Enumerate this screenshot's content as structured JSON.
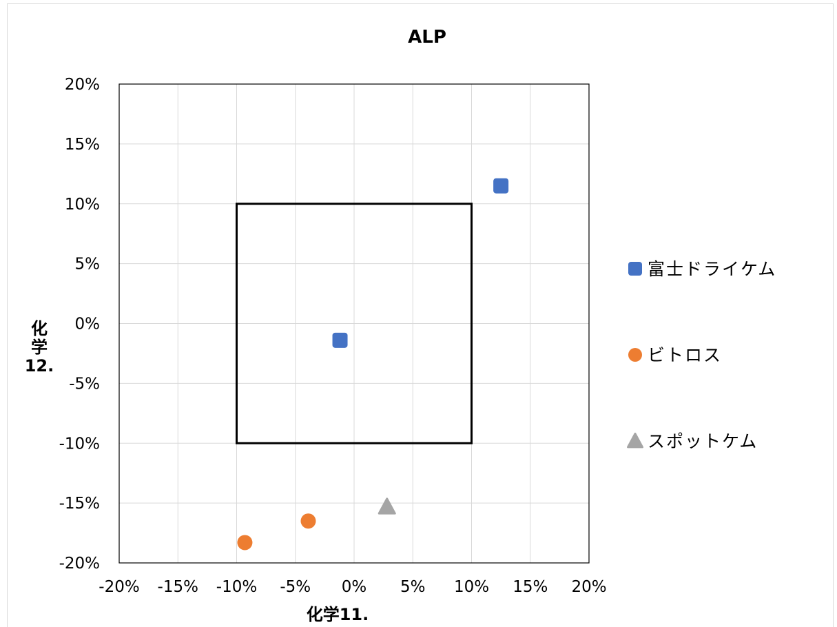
{
  "chart_data": {
    "type": "scatter",
    "title": "ALP",
    "xlabel": "化学11.",
    "ylabel": "化学12.",
    "xlim": [
      -0.2,
      0.2
    ],
    "ylim": [
      -0.2,
      0.2
    ],
    "x_ticks": [
      "-20%",
      "-15%",
      "-10%",
      "-5%",
      "0%",
      "5%",
      "10%",
      "15%",
      "20%"
    ],
    "y_ticks": [
      "20%",
      "15%",
      "10%",
      "5%",
      "0%",
      "-5%",
      "-10%",
      "-15%",
      "-20%"
    ],
    "grid": true,
    "legend_position": "right",
    "acceptance_box": {
      "x": [
        -0.1,
        0.1
      ],
      "y": [
        -0.1,
        0.1
      ]
    },
    "series": [
      {
        "name": "富士ドライケム",
        "marker": "square",
        "color": "#4472C4",
        "points": [
          {
            "x": 0.125,
            "y": 0.115
          },
          {
            "x": -0.012,
            "y": -0.014
          }
        ]
      },
      {
        "name": "ビトロス",
        "marker": "circle",
        "color": "#ED7D31",
        "points": [
          {
            "x": -0.093,
            "y": -0.183
          },
          {
            "x": -0.039,
            "y": -0.165
          }
        ]
      },
      {
        "name": "スポットケム",
        "marker": "triangle",
        "color": "#A5A5A5",
        "points": [
          {
            "x": 0.028,
            "y": -0.153
          }
        ]
      }
    ]
  }
}
